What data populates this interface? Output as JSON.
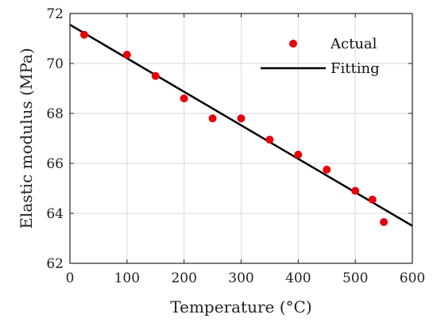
{
  "chart_data": {
    "type": "scatter",
    "xlabel": "Temperature (°C)",
    "ylabel": "Elastic modulus (MPa)",
    "xlim": [
      0,
      600
    ],
    "ylim": [
      62,
      72
    ],
    "xticks": [
      "0",
      "100",
      "200",
      "300",
      "400",
      "500",
      "600"
    ],
    "yticks": [
      "62",
      "64",
      "66",
      "68",
      "70",
      "72"
    ],
    "grid": true,
    "legend_position": "top-right",
    "series": [
      {
        "name": "Actual",
        "kind": "scatter",
        "color": "#e8000b",
        "x": [
          25,
          100,
          150,
          200,
          250,
          300,
          350,
          400,
          450,
          500,
          530,
          550
        ],
        "y": [
          71.15,
          70.35,
          69.5,
          68.6,
          67.8,
          67.8,
          66.95,
          66.35,
          65.75,
          64.9,
          64.55,
          63.65
        ]
      },
      {
        "name": "Fitting",
        "kind": "line",
        "color": "#000000",
        "x": [
          0,
          600
        ],
        "y": [
          71.55,
          63.5
        ]
      }
    ]
  }
}
